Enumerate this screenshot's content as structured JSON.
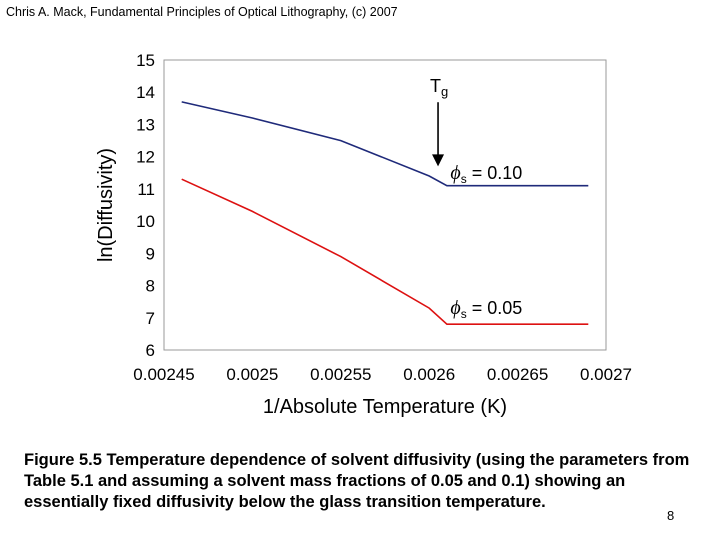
{
  "header": {
    "credit": "Chris A. Mack, Fundamental Principles of Optical Lithography, (c) 2007"
  },
  "chart_data": {
    "type": "line",
    "xlabel": "1/Absolute Temperature (K)",
    "ylabel": "ln(Diffusivity)",
    "xlim": [
      0.00245,
      0.0027
    ],
    "ylim": [
      6,
      15
    ],
    "x_ticks": [
      "0.00245",
      "0.0025",
      "0.00255",
      "0.0026",
      "0.00265",
      "0.0027"
    ],
    "y_ticks": [
      "6",
      "7",
      "8",
      "9",
      "10",
      "11",
      "12",
      "13",
      "14",
      "15"
    ],
    "grid": false,
    "series": [
      {
        "name": "ϕs = 0.10",
        "color": "#1f2a7a",
        "x": [
          0.00246,
          0.0025,
          0.00255,
          0.0026,
          0.00261,
          0.00265,
          0.00269
        ],
        "y": [
          13.7,
          13.2,
          12.5,
          11.4,
          11.1,
          11.1,
          11.1
        ]
      },
      {
        "name": "ϕs = 0.05",
        "color": "#dd1111",
        "x": [
          0.00246,
          0.0025,
          0.00255,
          0.0026,
          0.00261,
          0.00265,
          0.00269
        ],
        "y": [
          11.3,
          10.3,
          8.9,
          7.3,
          6.8,
          6.8,
          6.8
        ]
      }
    ],
    "annotations": [
      {
        "text": "T",
        "subscript": "g",
        "arrow_x": 0.002605,
        "arrow_y_from": 14.0,
        "arrow_y_to": 11.7
      },
      {
        "text": "ϕ",
        "subscript": "s",
        "suffix": " = 0.10",
        "x": 0.002612,
        "y": 11.5
      },
      {
        "text": "ϕ",
        "subscript": "s",
        "suffix": " = 0.05",
        "x": 0.002612,
        "y": 7.3
      }
    ]
  },
  "caption": "Figure 5.5 Temperature dependence of solvent diffusivity (using the parameters from Table 5.1 and assuming a solvent mass fractions of 0.05 and 0.1) showing an essentially fixed diffusivity below the glass transition temperature.",
  "page_number": "8"
}
